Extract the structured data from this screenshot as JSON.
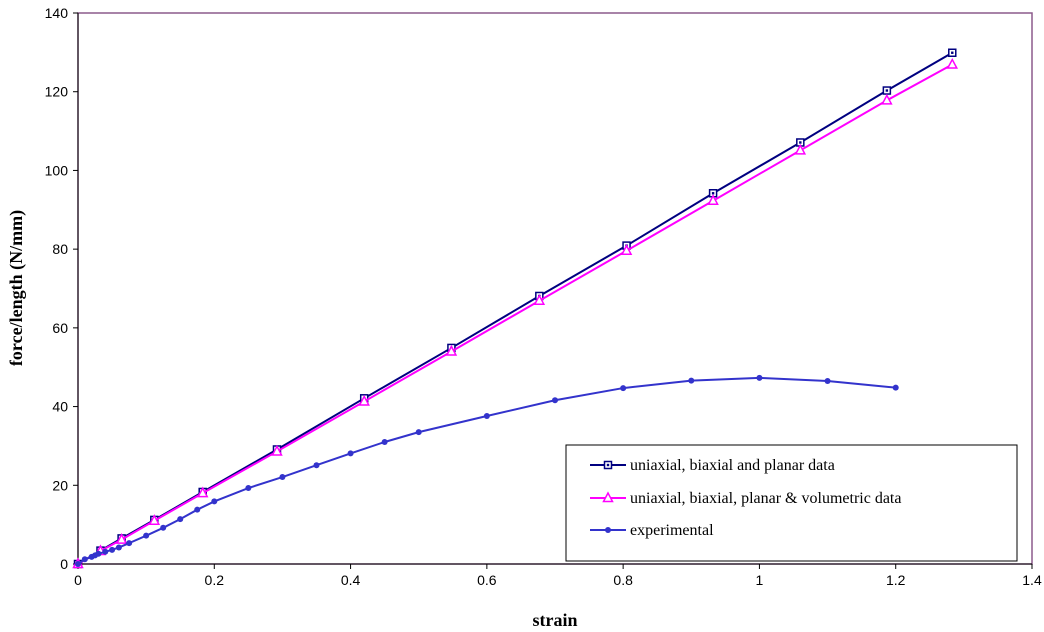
{
  "chart_data": {
    "type": "line",
    "xlabel": "strain",
    "ylabel": "force/length (N/mm)",
    "xlim": [
      0,
      1.4
    ],
    "ylim": [
      0,
      140
    ],
    "x_ticks": [
      "0",
      "0.2",
      "0.4",
      "0.6",
      "0.8",
      "1",
      "1.2",
      "1.4"
    ],
    "y_ticks": [
      "0",
      "20",
      "40",
      "60",
      "80",
      "100",
      "120",
      "140"
    ],
    "grid": false,
    "legend_position": "bottom-right",
    "series": [
      {
        "name": "uniaxial, biaxial and planar data",
        "color": "#000080",
        "marker": "square",
        "x": [
          0,
          0.033,
          0.064,
          0.112,
          0.183,
          0.292,
          0.42,
          0.548,
          0.677,
          0.805,
          0.932,
          1.06,
          1.187,
          1.283
        ],
        "y": [
          0,
          3.4,
          6.5,
          11.2,
          18.3,
          29.1,
          42.1,
          54.9,
          68.1,
          80.9,
          94.2,
          107.1,
          120.3,
          129.9
        ]
      },
      {
        "name": "uniaxial, biaxial, planar & volumetric data",
        "color": "#FF00FF",
        "marker": "triangle",
        "x": [
          0,
          0.033,
          0.064,
          0.112,
          0.183,
          0.292,
          0.42,
          0.548,
          0.677,
          0.805,
          0.932,
          1.06,
          1.187,
          1.283
        ],
        "y": [
          0,
          3.3,
          6.2,
          11.0,
          18.0,
          28.6,
          41.3,
          54.0,
          66.9,
          79.6,
          92.3,
          105.1,
          117.8,
          126.9
        ]
      },
      {
        "name": "experimental",
        "color": "#3333CC",
        "marker": "circle",
        "x": [
          0,
          0.01,
          0.02,
          0.025,
          0.03,
          0.04,
          0.05,
          0.06,
          0.075,
          0.1,
          0.125,
          0.15,
          0.175,
          0.2,
          0.25,
          0.3,
          0.35,
          0.4,
          0.45,
          0.5,
          0.6,
          0.7,
          0.8,
          0.9,
          1.0,
          1.1,
          1.2
        ],
        "y": [
          0,
          1.2,
          1.8,
          2.2,
          2.6,
          3.1,
          3.6,
          4.2,
          5.3,
          7.2,
          9.2,
          11.4,
          13.8,
          15.9,
          19.3,
          22.1,
          25.1,
          28.1,
          31.0,
          33.5,
          37.6,
          41.6,
          44.7,
          46.6,
          47.3,
          46.5,
          44.8
        ]
      }
    ]
  }
}
